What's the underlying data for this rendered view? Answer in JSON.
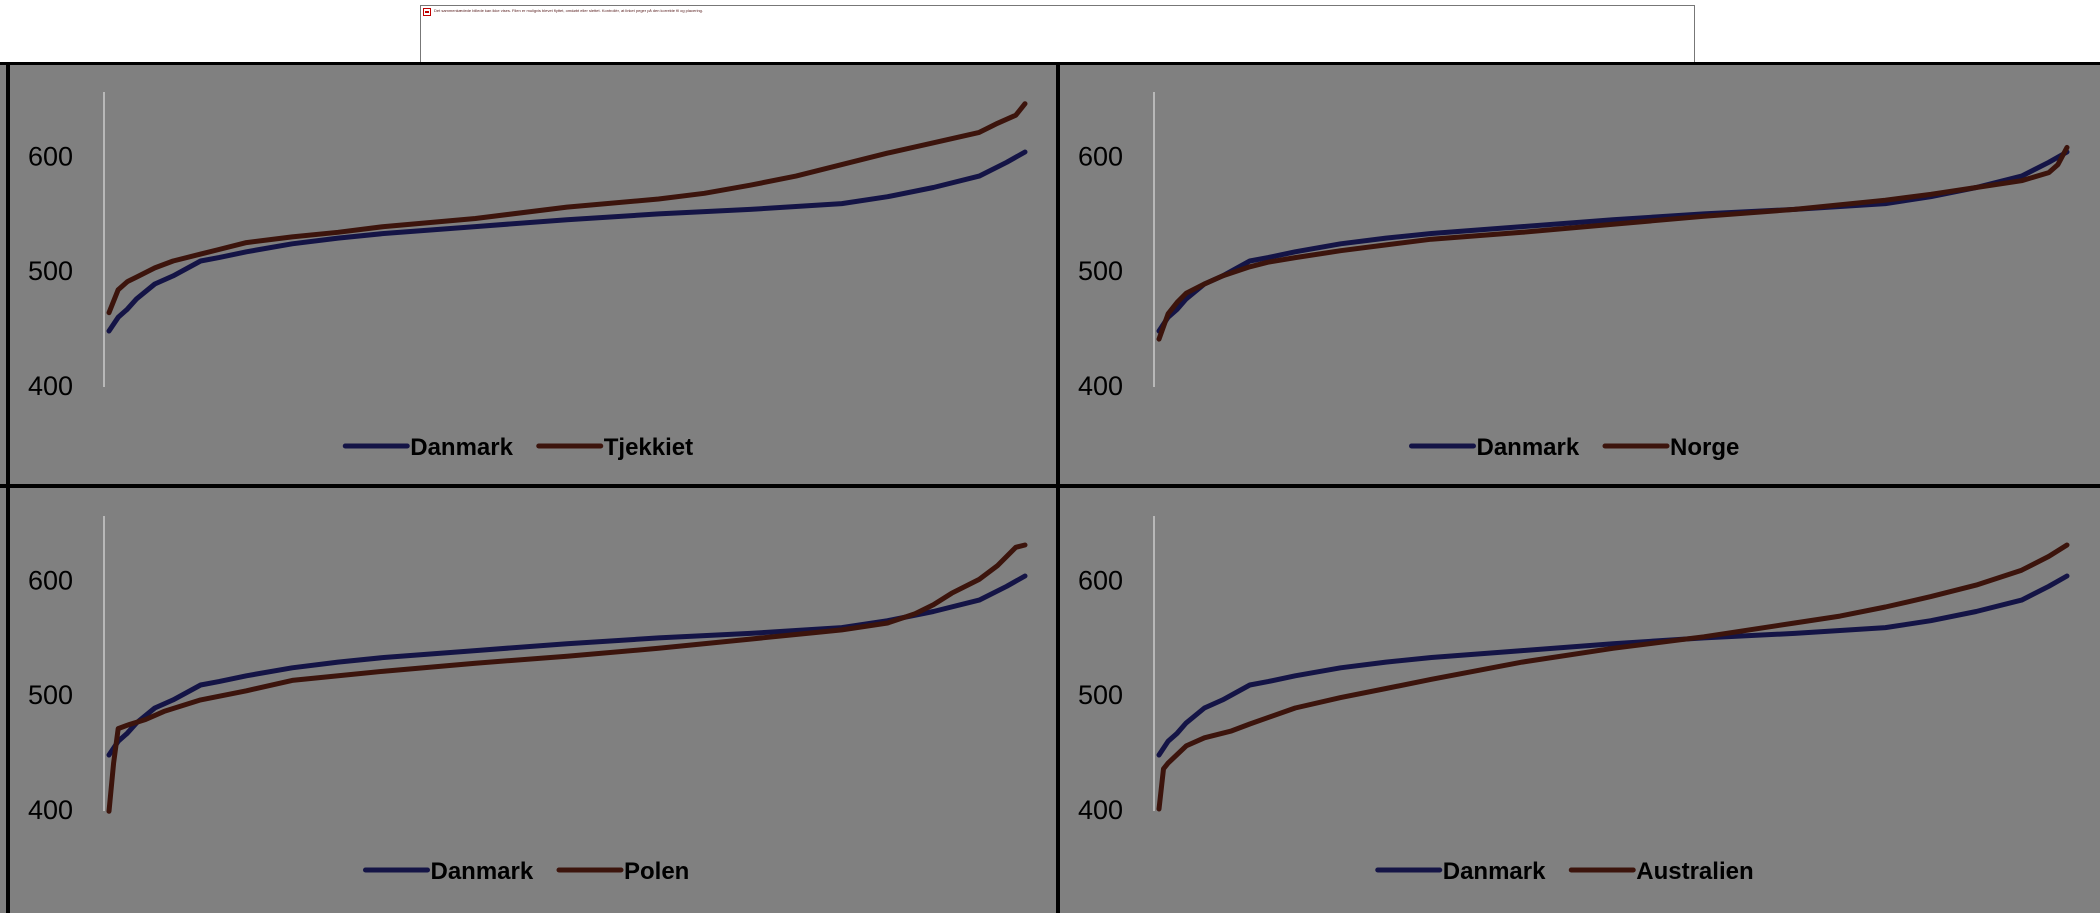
{
  "broken_image": {
    "text": "Det sammenkædede billede kan ikke vises. Filen er muligvis blevet flyttet, omdøbt eller slettet. Kontrollér, at linket peger på den korrekte fil og placering."
  },
  "colors": {
    "chart_background": "#808080",
    "frame": "#000000",
    "axis_line": "#b8b8b8",
    "tick_text": "#000000",
    "series_denmark": "#141446",
    "series_other": "#3c140c"
  },
  "chart_data": [
    {
      "type": "line",
      "y_ticks": [
        "600",
        "500",
        "400"
      ],
      "ylim": [
        400,
        650
      ],
      "grid": false,
      "legend_position": "bottom",
      "series": [
        {
          "name": "Danmark",
          "x": [
            0,
            1,
            2,
            3,
            5,
            7,
            10,
            12,
            15,
            20,
            25,
            30,
            40,
            50,
            60,
            70,
            80,
            85,
            90,
            95,
            98,
            100
          ],
          "values": [
            447,
            459,
            466,
            475,
            488,
            495,
            508,
            511,
            516,
            523,
            528,
            532,
            538,
            544,
            549,
            553,
            558,
            564,
            572,
            582,
            594,
            603
          ]
        },
        {
          "name": "Tjekkiet",
          "x": [
            0,
            1,
            2,
            3,
            5,
            7,
            10,
            12,
            15,
            20,
            25,
            30,
            40,
            50,
            60,
            65,
            70,
            75,
            80,
            85,
            90,
            95,
            97,
            99,
            100
          ],
          "values": [
            463,
            483,
            490,
            494,
            502,
            508,
            514,
            518,
            524,
            529,
            533,
            538,
            545,
            555,
            562,
            567,
            574,
            582,
            592,
            602,
            611,
            620,
            628,
            635,
            645
          ]
        }
      ]
    },
    {
      "type": "line",
      "y_ticks": [
        "600",
        "500",
        "400"
      ],
      "ylim": [
        400,
        650
      ],
      "grid": false,
      "legend_position": "bottom",
      "series": [
        {
          "name": "Danmark",
          "x": [
            0,
            1,
            2,
            3,
            5,
            7,
            10,
            12,
            15,
            20,
            25,
            30,
            40,
            50,
            60,
            70,
            80,
            85,
            90,
            95,
            98,
            100
          ],
          "values": [
            447,
            459,
            466,
            475,
            488,
            495,
            508,
            511,
            516,
            523,
            528,
            532,
            538,
            544,
            549,
            553,
            558,
            564,
            572,
            582,
            594,
            603
          ]
        },
        {
          "name": "Norge",
          "x": [
            0,
            1,
            2,
            3,
            5,
            7,
            10,
            12,
            15,
            20,
            25,
            30,
            40,
            50,
            60,
            70,
            80,
            85,
            90,
            95,
            98,
            99,
            100
          ],
          "values": [
            440,
            462,
            472,
            480,
            488,
            495,
            503,
            507,
            511,
            517,
            522,
            527,
            533,
            540,
            547,
            553,
            561,
            566,
            572,
            578,
            585,
            592,
            607
          ]
        }
      ]
    },
    {
      "type": "line",
      "y_ticks": [
        "600",
        "500",
        "400"
      ],
      "ylim": [
        400,
        650
      ],
      "grid": false,
      "legend_position": "bottom",
      "series": [
        {
          "name": "Danmark",
          "x": [
            0,
            1,
            2,
            3,
            5,
            7,
            10,
            12,
            15,
            20,
            25,
            30,
            40,
            50,
            60,
            70,
            80,
            85,
            90,
            95,
            98,
            100
          ],
          "values": [
            447,
            459,
            466,
            475,
            488,
            495,
            508,
            511,
            516,
            523,
            528,
            532,
            538,
            544,
            549,
            553,
            558,
            564,
            572,
            582,
            594,
            603
          ]
        },
        {
          "name": "Polen",
          "x": [
            0,
            0.5,
            1,
            2,
            4,
            6,
            10,
            15,
            20,
            30,
            40,
            50,
            60,
            70,
            80,
            85,
            88,
            90,
            92,
            95,
            97,
            99,
            100
          ],
          "values": [
            398,
            440,
            470,
            473,
            478,
            485,
            495,
            503,
            512,
            520,
            527,
            533,
            540,
            548,
            556,
            562,
            570,
            578,
            588,
            600,
            612,
            628,
            630
          ]
        }
      ]
    },
    {
      "type": "line",
      "y_ticks": [
        "600",
        "500",
        "400"
      ],
      "ylim": [
        400,
        650
      ],
      "grid": false,
      "legend_position": "bottom",
      "series": [
        {
          "name": "Danmark",
          "x": [
            0,
            1,
            2,
            3,
            5,
            7,
            10,
            12,
            15,
            20,
            25,
            30,
            40,
            50,
            60,
            70,
            80,
            85,
            90,
            95,
            98,
            100
          ],
          "values": [
            447,
            459,
            466,
            475,
            488,
            495,
            508,
            511,
            516,
            523,
            528,
            532,
            538,
            544,
            549,
            553,
            558,
            564,
            572,
            582,
            594,
            603
          ]
        },
        {
          "name": "Australien",
          "x": [
            0,
            0.5,
            1,
            3,
            5,
            8,
            10,
            15,
            20,
            25,
            30,
            40,
            50,
            60,
            70,
            75,
            80,
            85,
            90,
            95,
            98,
            100
          ],
          "values": [
            400,
            435,
            440,
            455,
            462,
            468,
            474,
            488,
            497,
            505,
            513,
            528,
            540,
            550,
            562,
            568,
            576,
            585,
            595,
            608,
            620,
            630
          ]
        }
      ]
    }
  ]
}
